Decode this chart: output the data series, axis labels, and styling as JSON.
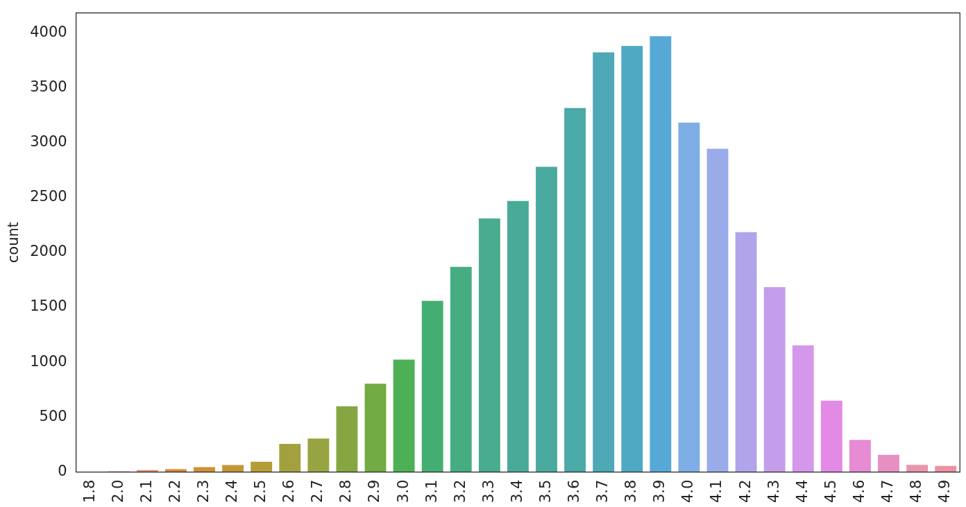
{
  "chart_data": {
    "type": "bar",
    "ylabel": "count",
    "categories": [
      "1.8",
      "2.0",
      "2.1",
      "2.2",
      "2.3",
      "2.4",
      "2.5",
      "2.6",
      "2.7",
      "2.8",
      "2.9",
      "3.0",
      "3.1",
      "3.2",
      "3.3",
      "3.4",
      "3.5",
      "3.6",
      "3.7",
      "3.8",
      "3.9",
      "4.0",
      "4.1",
      "4.2",
      "4.3",
      "4.4",
      "4.5",
      "4.6",
      "4.7",
      "4.8",
      "4.9"
    ],
    "values": [
      1,
      13,
      24,
      32,
      51,
      70,
      100,
      262,
      311,
      605,
      810,
      1030,
      1565,
      1875,
      2315,
      2475,
      2785,
      3320,
      3827,
      3885,
      3974,
      3187,
      2950,
      2190,
      1690,
      1160,
      655,
      299,
      164,
      72,
      62
    ],
    "colors": [
      "#e8818f",
      "#e58a80",
      "#dc8f6c",
      "#d9883a",
      "#ce9137",
      "#c29637",
      "#b49c37",
      "#a3a03f",
      "#98a342",
      "#86a643",
      "#72ab41",
      "#4db055",
      "#44ae72",
      "#46ad83",
      "#48ac8e",
      "#49ab97",
      "#4aaa9f",
      "#4ba9a8",
      "#4ea8b5",
      "#50a9c2",
      "#56a9d6",
      "#7eaee5",
      "#9aabe9",
      "#b2a4ea",
      "#c49eea",
      "#d597ea",
      "#e28ae6",
      "#e68bd4",
      "#e88fc1",
      "#ea94ad",
      "#eb91a1"
    ],
    "ylim": [
      0,
      4180
    ],
    "yticks": [
      0,
      500,
      1000,
      1500,
      2000,
      2500,
      3000,
      3500,
      4000
    ],
    "grid": false,
    "legend": false
  }
}
